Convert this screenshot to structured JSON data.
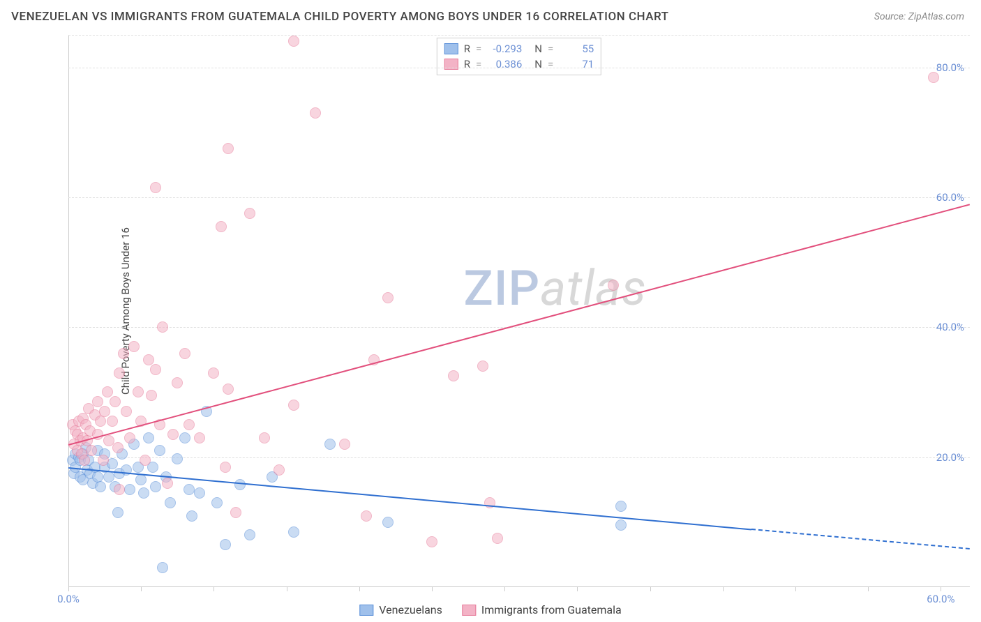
{
  "title": "VENEZUELAN VS IMMIGRANTS FROM GUATEMALA CHILD POVERTY AMONG BOYS UNDER 16 CORRELATION CHART",
  "source": "Source: ZipAtlas.com",
  "ylabel": "Child Poverty Among Boys Under 16",
  "watermark": {
    "a": "ZIP",
    "b": "atlas"
  },
  "chart": {
    "type": "scatter",
    "background_color": "#ffffff",
    "grid_color": "#e0e0e0",
    "axis_color": "#cccccc",
    "xlim": [
      0,
      62
    ],
    "ylim": [
      0,
      85
    ],
    "xticks": [
      0,
      5,
      10,
      15,
      20,
      25,
      30,
      35,
      40,
      45,
      50,
      55,
      60
    ],
    "xtick_labels": {
      "0": "0.0%",
      "60": "60.0%"
    },
    "yticks": [
      20,
      40,
      60,
      80
    ],
    "ytick_labels": [
      "20.0%",
      "40.0%",
      "60.0%",
      "80.0%"
    ],
    "tick_label_color": "#6b8fd4",
    "tick_label_fontsize": 15,
    "title_fontsize": 17,
    "title_color": "#444444",
    "point_radius": 8,
    "point_opacity": 0.55,
    "series": [
      {
        "name": "Venezuelans",
        "color": "#5a8fd8",
        "fill": "#9fc0eb",
        "stroke": "#5a8fd8",
        "R": "-0.293",
        "N": "55",
        "points": [
          [
            0.3,
            19.5
          ],
          [
            0.4,
            17.5
          ],
          [
            0.5,
            20.5
          ],
          [
            0.5,
            18.5
          ],
          [
            0.7,
            20.0
          ],
          [
            0.8,
            17.0
          ],
          [
            0.8,
            19.5
          ],
          [
            1.0,
            20.5
          ],
          [
            1.0,
            16.5
          ],
          [
            1.2,
            21.5
          ],
          [
            1.3,
            18.0
          ],
          [
            1.4,
            19.5
          ],
          [
            1.5,
            17.5
          ],
          [
            1.7,
            16.0
          ],
          [
            1.8,
            18.5
          ],
          [
            2.0,
            21.0
          ],
          [
            2.0,
            17.0
          ],
          [
            2.2,
            15.5
          ],
          [
            2.5,
            20.5
          ],
          [
            2.5,
            18.5
          ],
          [
            2.8,
            17.0
          ],
          [
            3.0,
            19.0
          ],
          [
            3.2,
            15.5
          ],
          [
            3.4,
            11.5
          ],
          [
            3.5,
            17.5
          ],
          [
            3.7,
            20.5
          ],
          [
            4.0,
            18.0
          ],
          [
            4.2,
            15.0
          ],
          [
            4.5,
            22.0
          ],
          [
            4.8,
            18.5
          ],
          [
            5.0,
            16.5
          ],
          [
            5.2,
            14.5
          ],
          [
            5.5,
            23.0
          ],
          [
            5.8,
            18.5
          ],
          [
            6.0,
            15.5
          ],
          [
            6.3,
            21.0
          ],
          [
            6.5,
            3.0
          ],
          [
            6.7,
            17.0
          ],
          [
            7.0,
            13.0
          ],
          [
            7.5,
            19.8
          ],
          [
            8.0,
            23.0
          ],
          [
            8.3,
            15.0
          ],
          [
            8.5,
            11.0
          ],
          [
            9.0,
            14.5
          ],
          [
            9.5,
            27.0
          ],
          [
            10.2,
            13.0
          ],
          [
            10.8,
            6.5
          ],
          [
            11.8,
            15.8
          ],
          [
            12.5,
            8.0
          ],
          [
            14.0,
            17.0
          ],
          [
            15.5,
            8.5
          ],
          [
            18.0,
            22.0
          ],
          [
            22.0,
            10.0
          ],
          [
            38.0,
            12.5
          ],
          [
            38.0,
            9.5
          ]
        ],
        "trend": {
          "x1": 0,
          "y1": 18.5,
          "x2": 47,
          "y2": 9.0,
          "x2_dash": 62,
          "y2_dash": 6.0,
          "color": "#2f6fd0"
        }
      },
      {
        "name": "Immigrants from Guatemala",
        "color": "#e77b9a",
        "fill": "#f3b3c6",
        "stroke": "#e77b9a",
        "R": "0.386",
        "N": "71",
        "points": [
          [
            0.3,
            25.0
          ],
          [
            0.4,
            22.0
          ],
          [
            0.5,
            24.0
          ],
          [
            0.6,
            23.5
          ],
          [
            0.6,
            21.0
          ],
          [
            0.7,
            25.5
          ],
          [
            0.8,
            22.5
          ],
          [
            0.9,
            20.5
          ],
          [
            1.0,
            26.0
          ],
          [
            1.0,
            23.0
          ],
          [
            1.1,
            19.5
          ],
          [
            1.2,
            25.0
          ],
          [
            1.3,
            22.5
          ],
          [
            1.4,
            27.5
          ],
          [
            1.5,
            24.0
          ],
          [
            1.6,
            21.0
          ],
          [
            1.8,
            26.5
          ],
          [
            2.0,
            23.5
          ],
          [
            2.0,
            28.5
          ],
          [
            2.2,
            25.5
          ],
          [
            2.4,
            19.5
          ],
          [
            2.5,
            27.0
          ],
          [
            2.7,
            30.0
          ],
          [
            2.8,
            22.5
          ],
          [
            3.0,
            25.5
          ],
          [
            3.2,
            28.5
          ],
          [
            3.4,
            21.5
          ],
          [
            3.5,
            33.0
          ],
          [
            3.5,
            15.0
          ],
          [
            3.8,
            36.0
          ],
          [
            4.0,
            27.0
          ],
          [
            4.2,
            23.0
          ],
          [
            4.5,
            37.0
          ],
          [
            4.8,
            30.0
          ],
          [
            5.0,
            25.5
          ],
          [
            5.3,
            19.5
          ],
          [
            5.5,
            35.0
          ],
          [
            5.7,
            29.5
          ],
          [
            6.0,
            33.5
          ],
          [
            6.0,
            61.5
          ],
          [
            6.3,
            25.0
          ],
          [
            6.5,
            40.0
          ],
          [
            6.8,
            16.0
          ],
          [
            7.2,
            23.5
          ],
          [
            7.5,
            31.5
          ],
          [
            8.0,
            36.0
          ],
          [
            8.3,
            25.0
          ],
          [
            9.0,
            23.0
          ],
          [
            10.0,
            33.0
          ],
          [
            10.5,
            55.5
          ],
          [
            10.8,
            18.5
          ],
          [
            11.0,
            67.5
          ],
          [
            11.0,
            30.5
          ],
          [
            11.5,
            11.5
          ],
          [
            12.5,
            57.5
          ],
          [
            13.5,
            23.0
          ],
          [
            14.5,
            18.0
          ],
          [
            15.5,
            28.0
          ],
          [
            15.5,
            84.0
          ],
          [
            17.0,
            73.0
          ],
          [
            19.0,
            22.0
          ],
          [
            20.5,
            11.0
          ],
          [
            22.0,
            44.5
          ],
          [
            25.0,
            7.0
          ],
          [
            26.5,
            32.5
          ],
          [
            28.5,
            34.0
          ],
          [
            29.0,
            13.0
          ],
          [
            29.5,
            7.5
          ],
          [
            37.5,
            46.5
          ],
          [
            59.5,
            78.5
          ],
          [
            21.0,
            35.0
          ]
        ],
        "trend": {
          "x1": 0,
          "y1": 22.0,
          "x2": 62,
          "y2": 59.0,
          "x2_dash": 62,
          "y2_dash": 59.0,
          "color": "#e24f7c"
        }
      }
    ]
  },
  "bottom_legend": [
    {
      "label": "Venezuelans",
      "fill": "#9fc0eb",
      "stroke": "#5a8fd8"
    },
    {
      "label": "Immigrants from Guatemala",
      "fill": "#f3b3c6",
      "stroke": "#e77b9a"
    }
  ]
}
